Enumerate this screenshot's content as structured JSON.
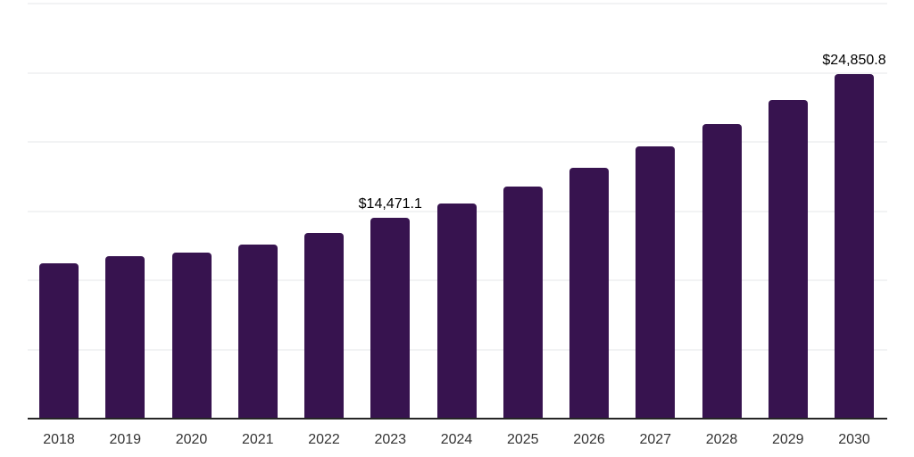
{
  "chart_data": {
    "type": "bar",
    "title": "",
    "xlabel": "",
    "ylabel": "",
    "categories": [
      "2018",
      "2019",
      "2020",
      "2021",
      "2022",
      "2023",
      "2024",
      "2025",
      "2026",
      "2027",
      "2028",
      "2029",
      "2030"
    ],
    "values": [
      11160,
      11650,
      11940,
      12520,
      13360,
      14471.1,
      15480,
      16710,
      18060,
      19610,
      21230,
      22970,
      24850.8
    ],
    "labeled_points": [
      {
        "category": "2023",
        "label": "$14,471.1"
      },
      {
        "category": "2030",
        "label": "$24,850.8"
      }
    ],
    "ylim": [
      0,
      30000
    ],
    "gridline_step": 5000,
    "grid": "horizontal-only",
    "legend": "none",
    "y_axis_labels_visible": false,
    "colors": {
      "bar": "#37134f",
      "gridline": "#f2f3f4",
      "axis_line": "#262626",
      "tick_label": "#333333",
      "data_label": "#000000",
      "background": "#ffffff"
    }
  }
}
